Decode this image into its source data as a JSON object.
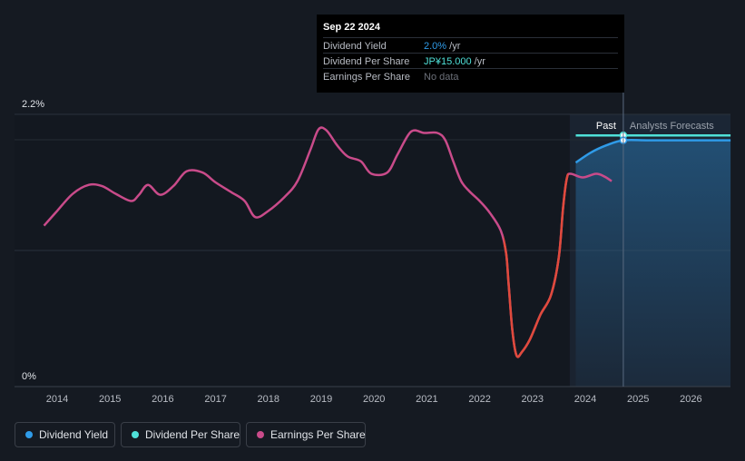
{
  "tooltip": {
    "date": "Sep 22 2024",
    "rows": [
      {
        "label": "Dividend Yield",
        "value": "2.0%",
        "unit": "/yr",
        "color": "#2f9be8"
      },
      {
        "label": "Dividend Per Share",
        "value": "JP¥15.000",
        "unit": "/yr",
        "color": "#4fe0d8"
      },
      {
        "label": "Earnings Per Share",
        "value": "No data",
        "unit": "",
        "color": "#6c7079"
      }
    ]
  },
  "legend": [
    {
      "label": "Dividend Yield",
      "color": "#2f9be8"
    },
    {
      "label": "Dividend Per Share",
      "color": "#4fe0d8"
    },
    {
      "label": "Earnings Per Share",
      "color": "#c94b8a"
    }
  ],
  "chart_data": {
    "type": "line",
    "y_axis_labels": [
      "2.2%",
      "0%"
    ],
    "x_tick_labels": [
      "2014",
      "2015",
      "2016",
      "2017",
      "2018",
      "2019",
      "2020",
      "2021",
      "2022",
      "2023",
      "2024",
      "2025",
      "2026"
    ],
    "ylim": [
      0,
      2.2
    ],
    "xlim": [
      2013.75,
      2026.75
    ],
    "past_label": "Past",
    "forecast_label": "Analysts Forecasts",
    "forecast_start": 2024.72,
    "series": [
      {
        "name": "Earnings Per Share",
        "color": "#c94b8a",
        "negative_color": "#e04a3c",
        "x": [
          2013.75,
          2014.0,
          2014.3,
          2014.6,
          2014.85,
          2015.1,
          2015.4,
          2015.55,
          2015.72,
          2015.95,
          2016.2,
          2016.45,
          2016.75,
          2017.0,
          2017.3,
          2017.55,
          2017.75,
          2018.0,
          2018.3,
          2018.55,
          2018.8,
          2018.95,
          2019.1,
          2019.3,
          2019.5,
          2019.75,
          2019.95,
          2020.25,
          2020.45,
          2020.7,
          2020.95,
          2021.2,
          2021.35,
          2021.5,
          2021.65,
          2021.8,
          2022.0,
          2022.2,
          2022.4,
          2022.5,
          2022.55,
          2022.62,
          2022.7,
          2022.8,
          2022.95,
          2023.15,
          2023.35,
          2023.5,
          2023.58,
          2023.65,
          2023.72,
          2023.95,
          2024.2,
          2024.35,
          2024.5
        ],
        "values": [
          1.3,
          1.42,
          1.56,
          1.63,
          1.62,
          1.56,
          1.5,
          1.55,
          1.63,
          1.55,
          1.62,
          1.74,
          1.73,
          1.65,
          1.57,
          1.5,
          1.37,
          1.42,
          1.53,
          1.66,
          1.92,
          2.08,
          2.07,
          1.95,
          1.86,
          1.82,
          1.72,
          1.73,
          1.88,
          2.06,
          2.05,
          2.05,
          1.99,
          1.82,
          1.66,
          1.58,
          1.5,
          1.4,
          1.26,
          1.08,
          0.82,
          0.45,
          0.25,
          0.28,
          0.38,
          0.58,
          0.74,
          1.05,
          1.45,
          1.68,
          1.72,
          1.69,
          1.72,
          1.7,
          1.66
        ]
      },
      {
        "name": "Dividend Yield",
        "color": "#2f9be8",
        "x": [
          2023.82,
          2024.1,
          2024.4,
          2024.72,
          2025.2,
          2026.0,
          2026.75
        ],
        "values": [
          1.81,
          1.89,
          1.95,
          1.99,
          1.99,
          1.99,
          1.99
        ]
      },
      {
        "name": "Dividend Per Share",
        "color": "#4fe0d8",
        "x": [
          2023.82,
          2024.72,
          2025.5,
          2026.75
        ],
        "values": [
          2.03,
          2.03,
          2.03,
          2.03
        ]
      }
    ]
  }
}
